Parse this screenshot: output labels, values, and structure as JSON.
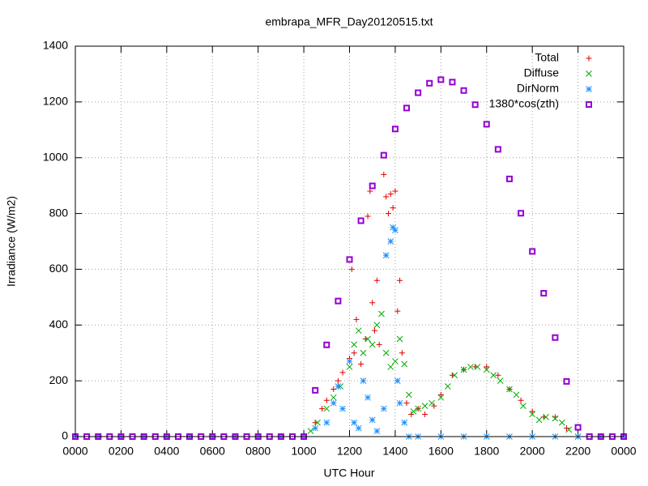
{
  "chart_data": {
    "type": "scatter",
    "title": "embrapa_MFR_Day20120515.txt",
    "x_label": "UTC Hour",
    "y_label": "Irradiance (W/m2)",
    "xlim": [
      0,
      24
    ],
    "ylim": [
      0,
      1400
    ],
    "xticks": [
      {
        "value": 0,
        "label": "0000"
      },
      {
        "value": 2,
        "label": "0200"
      },
      {
        "value": 4,
        "label": "0400"
      },
      {
        "value": 6,
        "label": "0600"
      },
      {
        "value": 8,
        "label": "0800"
      },
      {
        "value": 10,
        "label": "1000"
      },
      {
        "value": 12,
        "label": "1200"
      },
      {
        "value": 14,
        "label": "1400"
      },
      {
        "value": 16,
        "label": "1600"
      },
      {
        "value": 18,
        "label": "1800"
      },
      {
        "value": 20,
        "label": "2000"
      },
      {
        "value": 22,
        "label": "2200"
      },
      {
        "value": 24,
        "label": "0000"
      }
    ],
    "yticks": [
      0,
      200,
      400,
      600,
      800,
      1000,
      1200,
      1400
    ],
    "grid": true,
    "legend": "top-right",
    "series": [
      {
        "name": "Total",
        "color": "#dd0000",
        "marker": "plus",
        "x": [
          10.5,
          10.8,
          11,
          11.3,
          11.5,
          11.7,
          12,
          12.1,
          12.2,
          12.3,
          12.5,
          12.7,
          12.8,
          12.9,
          13,
          13.1,
          13.2,
          13.3,
          13.5,
          13.6,
          13.7,
          13.8,
          13.9,
          14,
          14.1,
          14.2,
          14.3,
          14.5,
          14.7,
          15,
          15.3,
          15.7,
          16,
          16.5,
          17,
          17.5,
          18,
          18.5,
          19,
          19.5,
          20,
          20.5,
          21,
          21.5,
          22
        ],
        "values": [
          50,
          100,
          130,
          170,
          200,
          230,
          280,
          600,
          300,
          420,
          260,
          350,
          790,
          880,
          480,
          380,
          560,
          330,
          940,
          860,
          800,
          870,
          820,
          880,
          450,
          560,
          300,
          120,
          80,
          100,
          80,
          110,
          150,
          220,
          240,
          250,
          250,
          220,
          170,
          130,
          90,
          70,
          70,
          30,
          0
        ]
      },
      {
        "name": "Diffuse",
        "color": "#00aa00",
        "marker": "cross",
        "x": [
          10.3,
          10.6,
          11,
          11.3,
          11.6,
          12,
          12.2,
          12.4,
          12.6,
          12.8,
          13,
          13.2,
          13.4,
          13.6,
          13.8,
          14,
          14.2,
          14.4,
          14.6,
          14.8,
          15,
          15.3,
          15.6,
          16,
          16.3,
          16.6,
          17,
          17.3,
          17.6,
          18,
          18.3,
          18.6,
          19,
          19.3,
          19.6,
          20,
          20.3,
          20.6,
          21,
          21.3,
          21.6,
          22
        ],
        "values": [
          20,
          50,
          100,
          140,
          180,
          250,
          330,
          380,
          300,
          350,
          330,
          400,
          440,
          300,
          250,
          270,
          350,
          260,
          150,
          90,
          100,
          110,
          120,
          140,
          180,
          220,
          240,
          250,
          250,
          240,
          220,
          200,
          170,
          150,
          110,
          80,
          60,
          70,
          65,
          50,
          25,
          0
        ]
      },
      {
        "name": "DirNorm",
        "color": "#1e90ff",
        "marker": "star",
        "x": [
          0,
          1,
          2,
          3,
          4,
          5,
          6,
          7,
          8,
          9,
          10,
          10.5,
          11,
          11.3,
          11.5,
          11.7,
          12,
          12.2,
          12.4,
          12.6,
          12.8,
          13,
          13.2,
          13.5,
          13.6,
          13.8,
          13.9,
          14,
          14.1,
          14.2,
          14.4,
          14.6,
          15,
          16,
          17,
          18,
          19,
          20,
          21,
          22,
          23,
          24
        ],
        "values": [
          0,
          0,
          0,
          0,
          0,
          0,
          0,
          0,
          0,
          0,
          0,
          30,
          50,
          120,
          180,
          100,
          270,
          50,
          30,
          200,
          140,
          60,
          20,
          100,
          650,
          700,
          750,
          740,
          200,
          120,
          50,
          0,
          0,
          0,
          0,
          0,
          0,
          0,
          0,
          0,
          0,
          0
        ]
      },
      {
        "name": "1380*cos(zth)",
        "color": "#9400d3",
        "marker": "square",
        "x": [
          0,
          0.5,
          1,
          1.5,
          2,
          2.5,
          3,
          3.5,
          4,
          4.5,
          5,
          5.5,
          6,
          6.5,
          7,
          7.5,
          8,
          8.5,
          9,
          9.5,
          10,
          10.5,
          11,
          11.5,
          12,
          12.5,
          13,
          13.5,
          14,
          14.5,
          15,
          15.5,
          16,
          16.5,
          17,
          17.5,
          18,
          18.5,
          19,
          19.5,
          20,
          20.5,
          21,
          21.5,
          22,
          22.5,
          23,
          23.5,
          24
        ],
        "values": [
          0,
          0,
          0,
          0,
          0,
          0,
          0,
          0,
          0,
          0,
          0,
          0,
          0,
          0,
          0,
          0,
          0,
          0,
          0,
          0,
          0,
          166,
          329,
          486,
          635,
          774,
          899,
          1009,
          1103,
          1178,
          1233,
          1267,
          1280,
          1271,
          1241,
          1190,
          1120,
          1030,
          924,
          801,
          664,
          514,
          355,
          198,
          33,
          0,
          0,
          0,
          0
        ]
      }
    ]
  }
}
